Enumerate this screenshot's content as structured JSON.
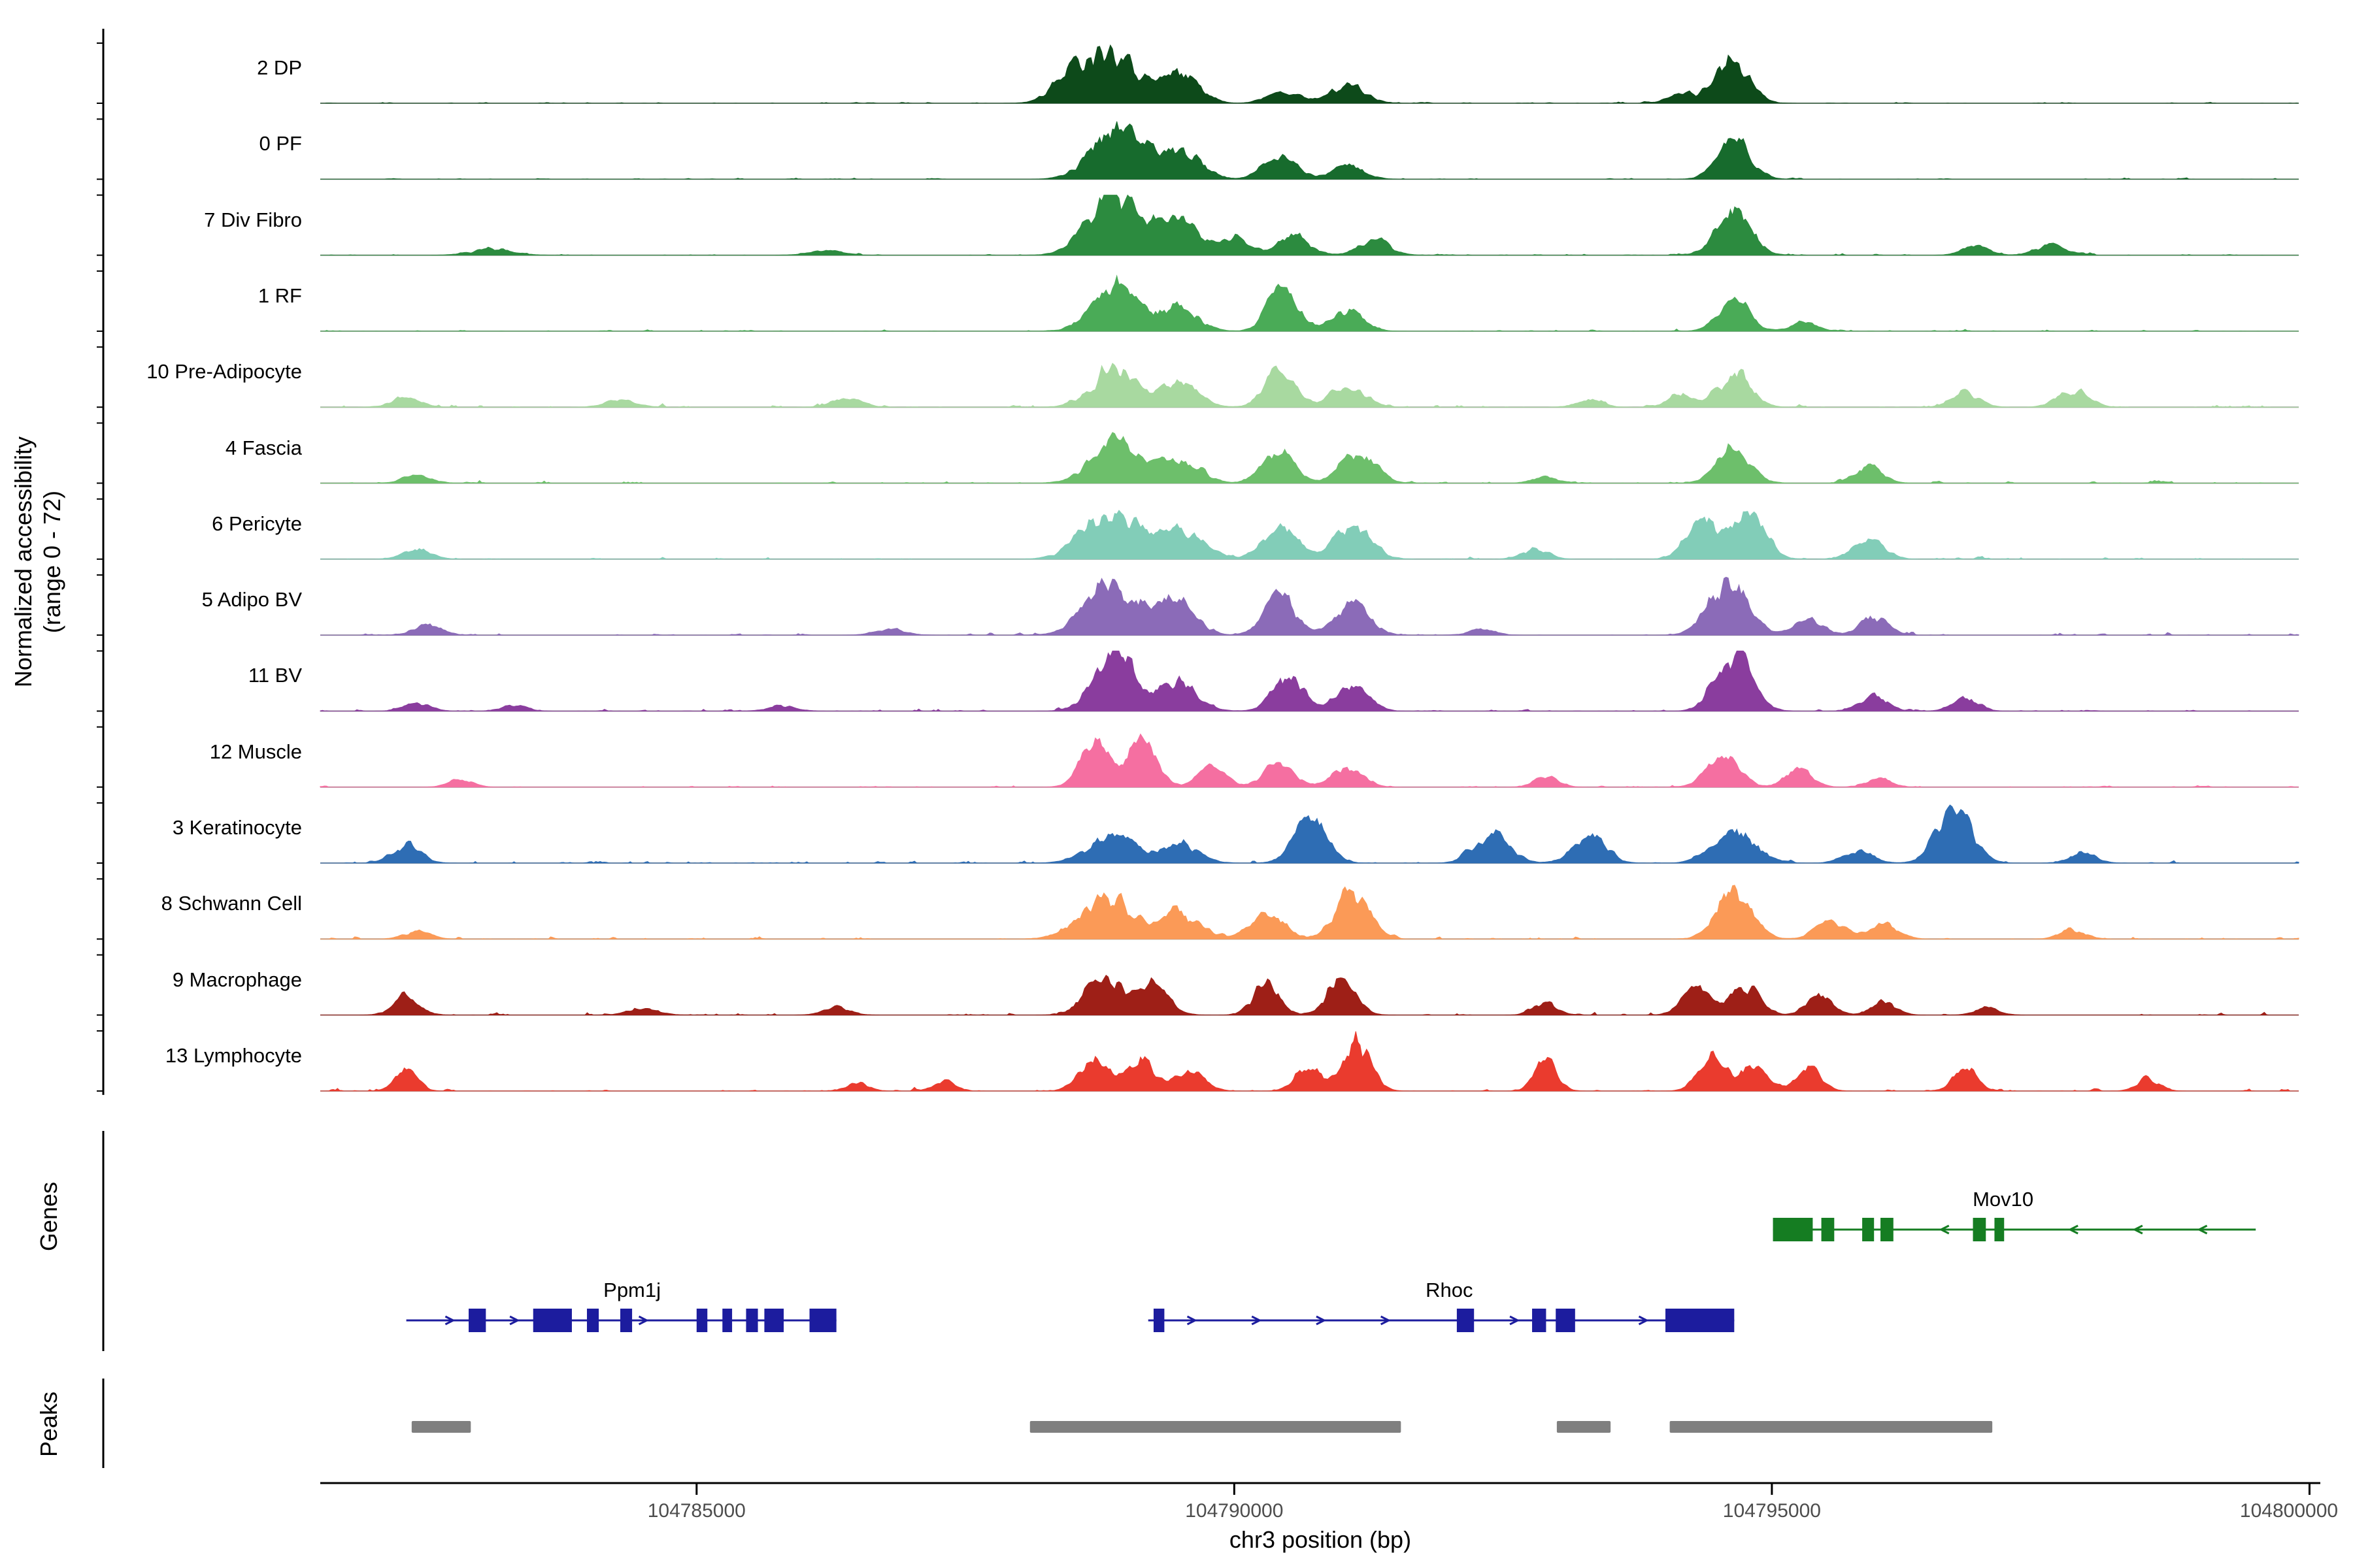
{
  "figure": {
    "y_axis_label_line1": "Normalized accessibility",
    "y_axis_label_line2": "(range 0 - 72)",
    "x_axis_label": "chr3 position (bp)",
    "genes_section_label": "Genes",
    "peaks_section_label": "Peaks"
  },
  "chart_data": {
    "type": "area",
    "title": "",
    "chromosome": "chr3",
    "x_domain": [
      104781500,
      104799900
    ],
    "x_ticks": [
      104785000,
      104790000,
      104795000,
      104800000
    ],
    "per_track_ylim": [
      0,
      72
    ],
    "peaks_format": "[center_bp, height_fraction_of_range_max, sigma_bp]",
    "colors": {
      "baseline": "#999999",
      "axis": "#000000",
      "tick_label": "#4d4d4d",
      "gene_label": "#000000",
      "peak_bar": "#7f7f7f"
    },
    "tracks": [
      {
        "label": "2 DP",
        "color": "#0d4a1a",
        "seed": 11,
        "noise": 0.035,
        "peaks": [
          [
            104788850,
            0.95,
            230
          ],
          [
            104788450,
            0.35,
            160
          ],
          [
            104789500,
            0.5,
            170
          ],
          [
            104790450,
            0.22,
            140
          ],
          [
            104791050,
            0.3,
            160
          ],
          [
            104794620,
            0.7,
            160
          ],
          [
            104794150,
            0.18,
            110
          ]
        ]
      },
      {
        "label": "0 PF",
        "color": "#176b2d",
        "seed": 22,
        "noise": 0.04,
        "peaks": [
          [
            104788900,
            0.88,
            220
          ],
          [
            104789500,
            0.52,
            180
          ],
          [
            104790420,
            0.45,
            140
          ],
          [
            104791050,
            0.22,
            150
          ],
          [
            104794650,
            0.62,
            150
          ]
        ]
      },
      {
        "label": "7 Div Fibro",
        "color": "#2c8b3f",
        "seed": 33,
        "noise": 0.05,
        "peaks": [
          [
            104788850,
            0.98,
            220
          ],
          [
            104789450,
            0.6,
            190
          ],
          [
            104790000,
            0.25,
            150
          ],
          [
            104790550,
            0.3,
            150
          ],
          [
            104791300,
            0.25,
            140
          ],
          [
            104794650,
            0.68,
            160
          ],
          [
            104796900,
            0.16,
            120
          ],
          [
            104797600,
            0.2,
            130
          ],
          [
            104783100,
            0.1,
            180
          ],
          [
            104786200,
            0.08,
            150
          ]
        ]
      },
      {
        "label": "1 RF",
        "color": "#4aab57",
        "seed": 44,
        "noise": 0.045,
        "peaks": [
          [
            104788900,
            0.75,
            210
          ],
          [
            104789500,
            0.38,
            170
          ],
          [
            104790450,
            0.8,
            130
          ],
          [
            104791050,
            0.35,
            150
          ],
          [
            104794650,
            0.52,
            140
          ],
          [
            104795300,
            0.14,
            120
          ]
        ]
      },
      {
        "label": "10 Pre-Adipocyte",
        "color": "#a8d9a0",
        "seed": 55,
        "noise": 0.1,
        "peaks": [
          [
            104788900,
            0.62,
            210
          ],
          [
            104789500,
            0.38,
            170
          ],
          [
            104790420,
            0.58,
            140
          ],
          [
            104791050,
            0.35,
            160
          ],
          [
            104794650,
            0.58,
            150
          ],
          [
            104794150,
            0.22,
            110
          ],
          [
            104796800,
            0.24,
            130
          ],
          [
            104797800,
            0.28,
            140
          ],
          [
            104782300,
            0.14,
            140
          ],
          [
            104784300,
            0.12,
            140
          ],
          [
            104786400,
            0.14,
            140
          ],
          [
            104793300,
            0.12,
            120
          ]
        ]
      },
      {
        "label": "4 Fascia",
        "color": "#6dbf6b",
        "seed": 66,
        "noise": 0.06,
        "peaks": [
          [
            104788900,
            0.7,
            220
          ],
          [
            104789500,
            0.42,
            180
          ],
          [
            104790420,
            0.52,
            140
          ],
          [
            104791150,
            0.48,
            160
          ],
          [
            104794650,
            0.6,
            150
          ],
          [
            104795900,
            0.26,
            130
          ],
          [
            104782400,
            0.13,
            130
          ],
          [
            104792900,
            0.1,
            120
          ]
        ]
      },
      {
        "label": "6 Pericyte",
        "color": "#82cdb8",
        "seed": 77,
        "noise": 0.06,
        "peaks": [
          [
            104788850,
            0.85,
            240
          ],
          [
            104789500,
            0.52,
            190
          ],
          [
            104790420,
            0.58,
            150
          ],
          [
            104791100,
            0.52,
            170
          ],
          [
            104794350,
            0.65,
            140
          ],
          [
            104794780,
            0.82,
            150
          ],
          [
            104795900,
            0.34,
            140
          ],
          [
            104792800,
            0.16,
            120
          ],
          [
            104782400,
            0.16,
            130
          ]
        ]
      },
      {
        "label": "5 Adipo BV",
        "color": "#8b6bb8",
        "seed": 88,
        "noise": 0.06,
        "peaks": [
          [
            104788850,
            0.9,
            230
          ],
          [
            104789450,
            0.52,
            180
          ],
          [
            104790420,
            0.65,
            140
          ],
          [
            104791100,
            0.5,
            160
          ],
          [
            104794600,
            0.85,
            180
          ],
          [
            104795350,
            0.26,
            130
          ],
          [
            104795950,
            0.3,
            130
          ],
          [
            104782500,
            0.16,
            130
          ],
          [
            104786800,
            0.1,
            140
          ],
          [
            104792300,
            0.1,
            120
          ]
        ]
      },
      {
        "label": "11 BV",
        "color": "#8a3d9e",
        "seed": 99,
        "noise": 0.055,
        "peaks": [
          [
            104788900,
            0.93,
            190
          ],
          [
            104789500,
            0.45,
            170
          ],
          [
            104790500,
            0.62,
            140
          ],
          [
            104791100,
            0.38,
            150
          ],
          [
            104794650,
            0.95,
            160
          ],
          [
            104795950,
            0.26,
            120
          ],
          [
            104796800,
            0.2,
            120
          ],
          [
            104782400,
            0.13,
            120
          ],
          [
            104783300,
            0.1,
            110
          ],
          [
            104785800,
            0.08,
            130
          ]
        ]
      },
      {
        "label": "12 Muscle",
        "color": "#f56fa1",
        "seed": 110,
        "noise": 0.05,
        "peaks": [
          [
            104788700,
            0.82,
            130
          ],
          [
            104789150,
            0.75,
            130
          ],
          [
            104789800,
            0.32,
            130
          ],
          [
            104790420,
            0.38,
            140
          ],
          [
            104791050,
            0.34,
            140
          ],
          [
            104794550,
            0.48,
            150
          ],
          [
            104795250,
            0.3,
            120
          ],
          [
            104792900,
            0.16,
            110
          ],
          [
            104782800,
            0.13,
            110
          ],
          [
            104796000,
            0.14,
            110
          ]
        ]
      },
      {
        "label": "3 Keratinocyte",
        "color": "#2e6db4",
        "seed": 121,
        "noise": 0.075,
        "peaks": [
          [
            104782300,
            0.3,
            130
          ],
          [
            104788850,
            0.48,
            210
          ],
          [
            104789500,
            0.32,
            170
          ],
          [
            104790700,
            0.75,
            150
          ],
          [
            104792400,
            0.48,
            160
          ],
          [
            104793300,
            0.45,
            150
          ],
          [
            104794650,
            0.52,
            190
          ],
          [
            104796700,
            0.9,
            160
          ],
          [
            104795800,
            0.22,
            130
          ],
          [
            104797900,
            0.16,
            120
          ]
        ]
      },
      {
        "label": "8 Schwann Cell",
        "color": "#fb9a57",
        "seed": 132,
        "noise": 0.06,
        "peaks": [
          [
            104788800,
            0.75,
            230
          ],
          [
            104789500,
            0.42,
            180
          ],
          [
            104790300,
            0.45,
            150
          ],
          [
            104791100,
            0.8,
            150
          ],
          [
            104794650,
            0.85,
            160
          ],
          [
            104795550,
            0.32,
            140
          ],
          [
            104796050,
            0.24,
            130
          ],
          [
            104797800,
            0.16,
            120
          ],
          [
            104782400,
            0.13,
            120
          ]
        ]
      },
      {
        "label": "9 Macrophage",
        "color": "#9e1f17",
        "seed": 143,
        "noise": 0.08,
        "peaks": [
          [
            104782300,
            0.32,
            120
          ],
          [
            104788800,
            0.65,
            170
          ],
          [
            104789250,
            0.48,
            140
          ],
          [
            104790300,
            0.5,
            120
          ],
          [
            104791000,
            0.58,
            130
          ],
          [
            104792900,
            0.22,
            110
          ],
          [
            104794300,
            0.45,
            130
          ],
          [
            104794750,
            0.48,
            130
          ],
          [
            104795450,
            0.32,
            120
          ],
          [
            104796050,
            0.22,
            110
          ],
          [
            104786300,
            0.13,
            120
          ],
          [
            104784500,
            0.1,
            140
          ],
          [
            104797000,
            0.12,
            110
          ]
        ]
      },
      {
        "label": "13 Lymphocyte",
        "color": "#ea3b2e",
        "seed": 154,
        "noise": 0.07,
        "peaks": [
          [
            104782300,
            0.38,
            100
          ],
          [
            104788700,
            0.5,
            140
          ],
          [
            104789150,
            0.48,
            140
          ],
          [
            104789600,
            0.32,
            130
          ],
          [
            104790700,
            0.42,
            120
          ],
          [
            104791150,
            0.88,
            120
          ],
          [
            104792900,
            0.58,
            100
          ],
          [
            104794450,
            0.52,
            130
          ],
          [
            104794850,
            0.45,
            120
          ],
          [
            104795350,
            0.38,
            110
          ],
          [
            104796800,
            0.38,
            110
          ],
          [
            104798500,
            0.2,
            100
          ],
          [
            104787300,
            0.16,
            100
          ],
          [
            104786500,
            0.13,
            100
          ]
        ]
      }
    ],
    "genes": [
      {
        "name": "Ppm1j",
        "strand": "+",
        "row": 1,
        "color": "#1c1c9e",
        "start": 104782300,
        "end": 104786300,
        "label_bp": 104784400,
        "exons": [
          [
            104782880,
            104783040
          ],
          [
            104783480,
            104783840
          ],
          [
            104783980,
            104784090
          ],
          [
            104784290,
            104784400
          ],
          [
            104785000,
            104785100
          ],
          [
            104785240,
            104785330
          ],
          [
            104785460,
            104785570
          ],
          [
            104785630,
            104785810
          ],
          [
            104786050,
            104786300
          ]
        ]
      },
      {
        "name": "Rhoc",
        "strand": "+",
        "row": 1,
        "color": "#1c1c9e",
        "start": 104789200,
        "end": 104794650,
        "label_bp": 104792000,
        "exons": [
          [
            104789250,
            104789350
          ],
          [
            104792070,
            104792230
          ],
          [
            104792770,
            104792900
          ],
          [
            104792990,
            104793170
          ],
          [
            104794010,
            104794650
          ]
        ]
      },
      {
        "name": "Mov10",
        "strand": "-",
        "row": 0,
        "color": "#157d22",
        "start": 104795010,
        "end": 104799500,
        "label_bp": 104797150,
        "exons": [
          [
            104795010,
            104795380
          ],
          [
            104795460,
            104795580
          ],
          [
            104795840,
            104795950
          ],
          [
            104796010,
            104796130
          ],
          [
            104796870,
            104796990
          ],
          [
            104797070,
            104797160
          ]
        ]
      }
    ],
    "peak_bars": [
      [
        104782350,
        104782900
      ],
      [
        104788100,
        104791550
      ],
      [
        104793000,
        104793500
      ],
      [
        104794050,
        104797050
      ]
    ]
  }
}
